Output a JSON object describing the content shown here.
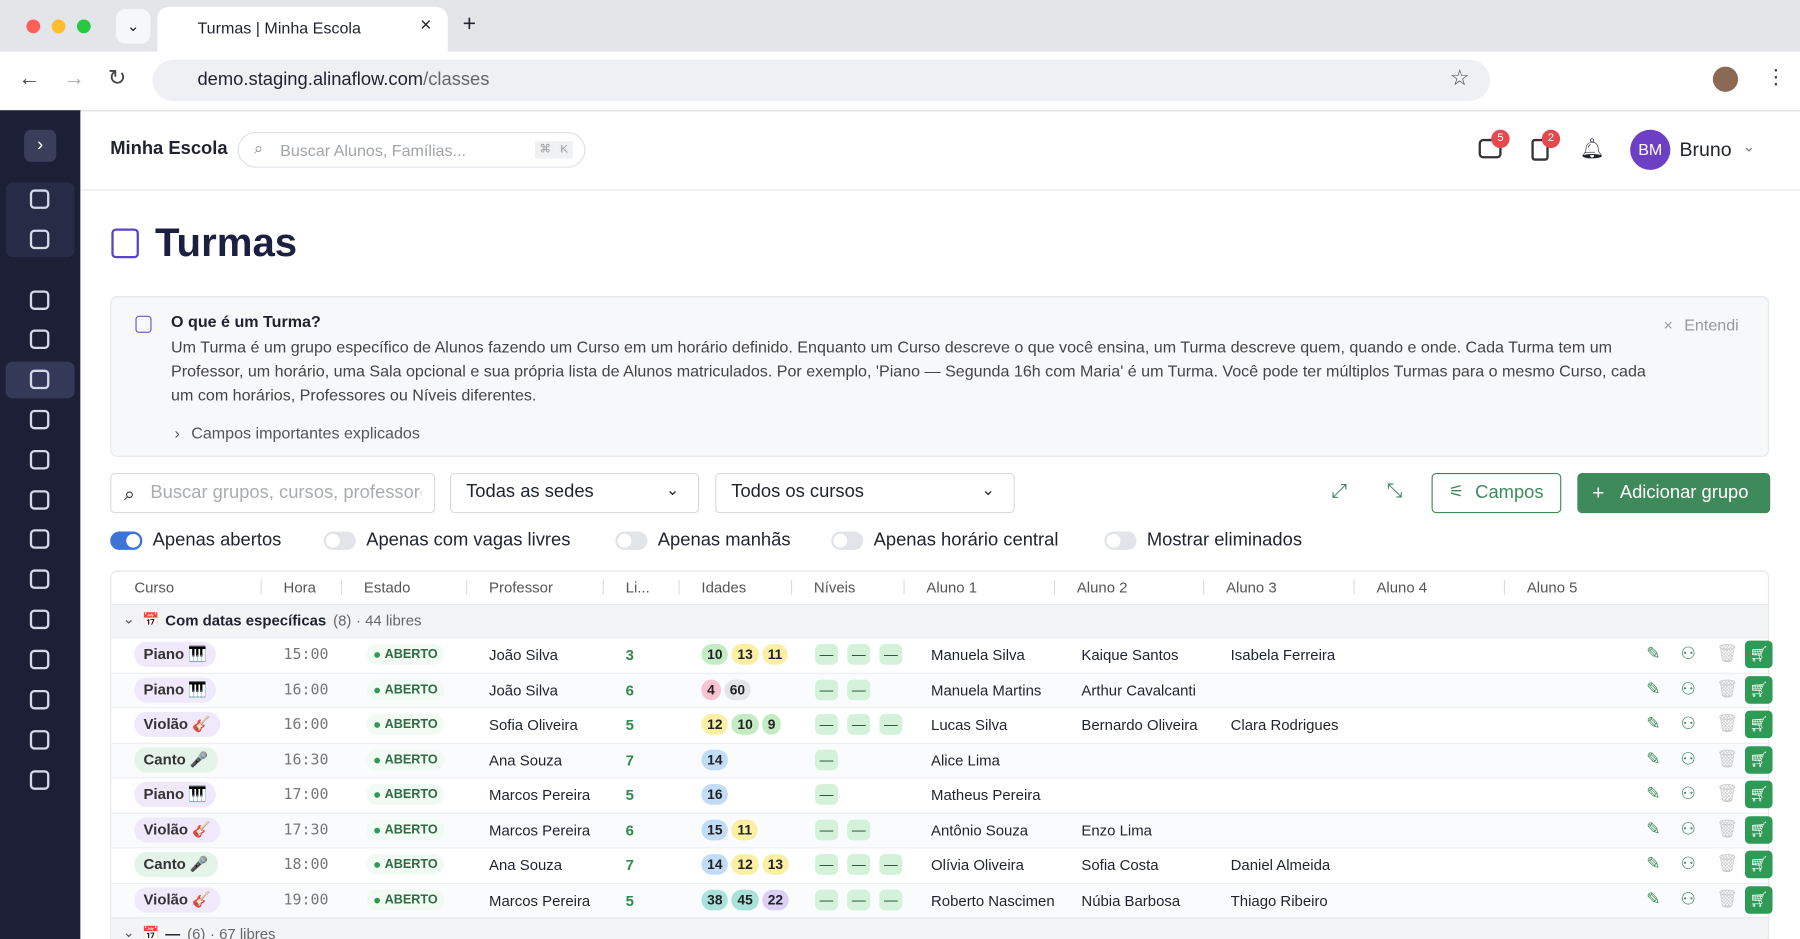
{
  "browser": {
    "tab_title": "Turmas | Minha Escola",
    "url_host": "demo.staging.alinaflow.com",
    "url_path": "/classes"
  },
  "header": {
    "school": "Minha Escola",
    "search_placeholder": "Buscar Alunos, Famílias...",
    "keys": [
      "⌘",
      "K"
    ],
    "badges": [
      "5",
      "2"
    ],
    "avatar": "BM",
    "user": "Bruno"
  },
  "page": {
    "title": "Turmas"
  },
  "info": {
    "title": "O que é um Turma?",
    "body": "Um Turma é um grupo específico de Alunos fazendo um Curso em um horário definido. Enquanto um Curso descreve o que você ensina, um Turma descreve quem, quando e onde. Cada Turma tem um Professor, um horário, uma Sala opcional e sua própria lista de Alunos matriculados. Por exemplo, 'Piano — Segunda 16h com Maria' é um Turma. Você pode ter múltiplos Turmas para o mesmo Curso, cada um com horários, Professores ou Níveis diferentes.",
    "link": "Campos importantes explicados",
    "dismiss": "Entendi"
  },
  "filters": {
    "search_placeholder": "Buscar grupos, cursos, professores",
    "sede": "Todas as sedes",
    "curso": "Todos os cursos",
    "campos": "Campos",
    "add": "Adicionar grupo"
  },
  "toggles": [
    {
      "label": "Apenas abertos",
      "on": true
    },
    {
      "label": "Apenas com vagas livres",
      "on": false
    },
    {
      "label": "Apenas manhãs",
      "on": false
    },
    {
      "label": "Apenas horário central",
      "on": false
    },
    {
      "label": "Mostrar eliminados",
      "on": false
    }
  ],
  "table": {
    "columns": [
      "Curso",
      "Hora",
      "Estado",
      "Professor",
      "Li...",
      "Idades",
      "Níveis",
      "Aluno 1",
      "Aluno 2",
      "Aluno 3",
      "Aluno 4",
      "Aluno 5"
    ],
    "groups": [
      {
        "icon": "📅",
        "title": "Com datas específicas",
        "count": "(8)",
        "summary": "· 44 libres",
        "rows": [
          {
            "course": "Piano 🎹",
            "course_color": "#efe9fb",
            "time": "15:00",
            "status": "ABERTO",
            "professor": "João Silva",
            "li": "3",
            "ages": [
              {
                "v": "10",
                "c": "#c3ebc4"
              },
              {
                "v": "13",
                "c": "#fbefa3"
              },
              {
                "v": "11",
                "c": "#fbefa3"
              }
            ],
            "levels": [
              "—",
              "—",
              "—"
            ],
            "students": [
              "Manuela Silva",
              "Kaique Santos",
              "Isabela Ferreira"
            ]
          },
          {
            "course": "Piano 🎹",
            "course_color": "#efe9fb",
            "time": "16:00",
            "status": "ABERTO",
            "professor": "João Silva",
            "li": "6",
            "ages": [
              {
                "v": "4",
                "c": "#f8c4d3"
              },
              {
                "v": "60",
                "c": "#e3e5e8"
              }
            ],
            "levels": [
              "—",
              "—"
            ],
            "students": [
              "Manuela Martins",
              "Arthur Cavalcanti"
            ]
          },
          {
            "course": "Violão 🎸",
            "course_color": "#efe9fb",
            "time": "16:00",
            "status": "ABERTO",
            "professor": "Sofia Oliveira",
            "li": "5",
            "ages": [
              {
                "v": "12",
                "c": "#fbefa3"
              },
              {
                "v": "10",
                "c": "#c3ebc4"
              },
              {
                "v": "9",
                "c": "#c3ebc4"
              }
            ],
            "levels": [
              "—",
              "—",
              "—"
            ],
            "students": [
              "Lucas Silva",
              "Bernardo Oliveira",
              "Clara Rodrigues"
            ]
          },
          {
            "course": "Canto 🎤",
            "course_color": "#e4f4e8",
            "time": "16:30",
            "status": "ABERTO",
            "professor": "Ana Souza",
            "li": "7",
            "ages": [
              {
                "v": "14",
                "c": "#c0dcf6"
              }
            ],
            "levels": [
              "—"
            ],
            "students": [
              "Alice Lima"
            ]
          },
          {
            "course": "Piano 🎹",
            "course_color": "#efe9fb",
            "time": "17:00",
            "status": "ABERTO",
            "professor": "Marcos Pereira",
            "li": "5",
            "ages": [
              {
                "v": "16",
                "c": "#c0dcf6"
              }
            ],
            "levels": [
              "—"
            ],
            "students": [
              "Matheus Pereira"
            ]
          },
          {
            "course": "Violão 🎸",
            "course_color": "#efe9fb",
            "time": "17:30",
            "status": "ABERTO",
            "professor": "Marcos Pereira",
            "li": "6",
            "ages": [
              {
                "v": "15",
                "c": "#c0dcf6"
              },
              {
                "v": "11",
                "c": "#fbefa3"
              }
            ],
            "levels": [
              "—",
              "—"
            ],
            "students": [
              "Antônio Souza",
              "Enzo Lima"
            ]
          },
          {
            "course": "Canto 🎤",
            "course_color": "#e4f4e8",
            "time": "18:00",
            "status": "ABERTO",
            "professor": "Ana Souza",
            "li": "7",
            "ages": [
              {
                "v": "14",
                "c": "#c0dcf6"
              },
              {
                "v": "12",
                "c": "#fbefa3"
              },
              {
                "v": "13",
                "c": "#fbefa3"
              }
            ],
            "levels": [
              "—",
              "—",
              "—"
            ],
            "students": [
              "Olívia Oliveira",
              "Sofia Costa",
              "Daniel Almeida"
            ]
          },
          {
            "course": "Violão 🎸",
            "course_color": "#efe9fb",
            "time": "19:00",
            "status": "ABERTO",
            "professor": "Marcos Pereira",
            "li": "5",
            "ages": [
              {
                "v": "38",
                "c": "#a9e2da"
              },
              {
                "v": "45",
                "c": "#a9e2da"
              },
              {
                "v": "22",
                "c": "#dccff6"
              }
            ],
            "levels": [
              "—",
              "—",
              "—"
            ],
            "students": [
              "Roberto Nascimen",
              "Núbia Barbosa",
              "Thiago Ribeiro"
            ]
          }
        ]
      },
      {
        "icon": "📅",
        "title": "—",
        "count": "(6)",
        "summary": "· 67 libres",
        "rows": []
      }
    ]
  }
}
